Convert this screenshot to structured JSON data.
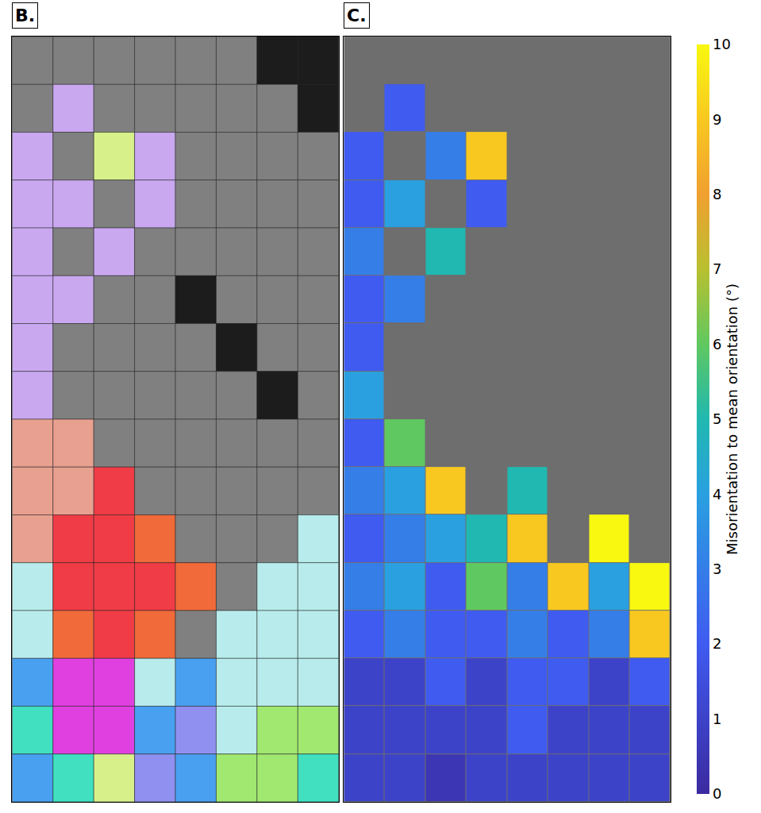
{
  "chart_data": {
    "type": "heatmap",
    "panels": [
      {
        "label": "B.",
        "cells": [
          [
            "#808080",
            "#808080",
            "#808080",
            "#808080",
            "#808080",
            "#808080",
            "#1c1c1c",
            "#1c1c1c"
          ],
          [
            "#808080",
            "#c9a8f0",
            "#808080",
            "#808080",
            "#808080",
            "#808080",
            "#808080",
            "#1c1c1c"
          ],
          [
            "#c9a8f0",
            "#808080",
            "#d8f08a",
            "#c9a8f0",
            "#808080",
            "#808080",
            "#808080",
            "#808080"
          ],
          [
            "#c9a8f0",
            "#c9a8f0",
            "#808080",
            "#c9a8f0",
            "#808080",
            "#808080",
            "#808080",
            "#808080"
          ],
          [
            "#c9a8f0",
            "#808080",
            "#c9a8f0",
            "#808080",
            "#808080",
            "#808080",
            "#808080",
            "#808080"
          ],
          [
            "#c9a8f0",
            "#c9a8f0",
            "#808080",
            "#808080",
            "#1c1c1c",
            "#808080",
            "#808080",
            "#808080"
          ],
          [
            "#c9a8f0",
            "#808080",
            "#808080",
            "#808080",
            "#808080",
            "#1c1c1c",
            "#808080",
            "#808080"
          ],
          [
            "#c9a8f0",
            "#808080",
            "#808080",
            "#808080",
            "#808080",
            "#808080",
            "#1c1c1c",
            "#808080"
          ],
          [
            "#e8a090",
            "#e8a090",
            "#808080",
            "#808080",
            "#808080",
            "#808080",
            "#808080",
            "#808080"
          ],
          [
            "#e8a090",
            "#e8a090",
            "#f03c46",
            "#808080",
            "#808080",
            "#808080",
            "#808080",
            "#808080"
          ],
          [
            "#e8a090",
            "#f03c46",
            "#f03c46",
            "#f06a3a",
            "#808080",
            "#808080",
            "#808080",
            "#b8ecec"
          ],
          [
            "#b8ecec",
            "#f03c46",
            "#f03c46",
            "#f03c46",
            "#f06a3a",
            "#808080",
            "#b8ecec",
            "#b8ecec"
          ],
          [
            "#b8ecec",
            "#f06a3a",
            "#f03c46",
            "#f06a3a",
            "#808080",
            "#b8ecec",
            "#b8ecec",
            "#b8ecec"
          ],
          [
            "#4aa0f0",
            "#e040e0",
            "#e040e0",
            "#b8ecec",
            "#4aa0f0",
            "#b8ecec",
            "#b8ecec",
            "#b8ecec"
          ],
          [
            "#40e0c0",
            "#e040e0",
            "#e040e0",
            "#4aa0f0",
            "#9090f0",
            "#b8ecec",
            "#a0e870",
            "#a0e870"
          ],
          [
            "#4aa0f0",
            "#40e0c0",
            "#d8f08a",
            "#9090f0",
            "#4aa0f0",
            "#a0e870",
            "#a0e870",
            "#40e0c0"
          ]
        ]
      },
      {
        "label": "C.",
        "values": [
          [
            null,
            null,
            null,
            null,
            null,
            null,
            null,
            null
          ],
          [
            null,
            2,
            null,
            null,
            null,
            null,
            null,
            null
          ],
          [
            2,
            null,
            3,
            9,
            null,
            null,
            null,
            null
          ],
          [
            2,
            4,
            null,
            2,
            null,
            null,
            null,
            null
          ],
          [
            3,
            null,
            5,
            null,
            null,
            null,
            null,
            null
          ],
          [
            2,
            3,
            null,
            null,
            null,
            null,
            null,
            null
          ],
          [
            2,
            null,
            null,
            null,
            null,
            null,
            null,
            null
          ],
          [
            4,
            null,
            null,
            null,
            null,
            null,
            null,
            null
          ],
          [
            2,
            6,
            null,
            null,
            null,
            null,
            null,
            null
          ],
          [
            3,
            4,
            9,
            null,
            5,
            null,
            null,
            null
          ],
          [
            2,
            3,
            4,
            5,
            9,
            null,
            10,
            null
          ],
          [
            3,
            4,
            2,
            6,
            3,
            9,
            4,
            10
          ],
          [
            2,
            3,
            2,
            2,
            3,
            2,
            3,
            9
          ],
          [
            1,
            1,
            2,
            1,
            2,
            2,
            1,
            2
          ],
          [
            1,
            1,
            1,
            1,
            2,
            1,
            1,
            1
          ],
          [
            1,
            1,
            0.5,
            1,
            1,
            1,
            1,
            1
          ]
        ]
      }
    ],
    "colorbar": {
      "title": "Misorientation to mean orientation (°)",
      "range": [
        0,
        10
      ],
      "ticks": [
        0,
        1,
        2,
        3,
        4,
        5,
        6,
        7,
        8,
        9,
        10
      ]
    },
    "tick_labels": false
  }
}
